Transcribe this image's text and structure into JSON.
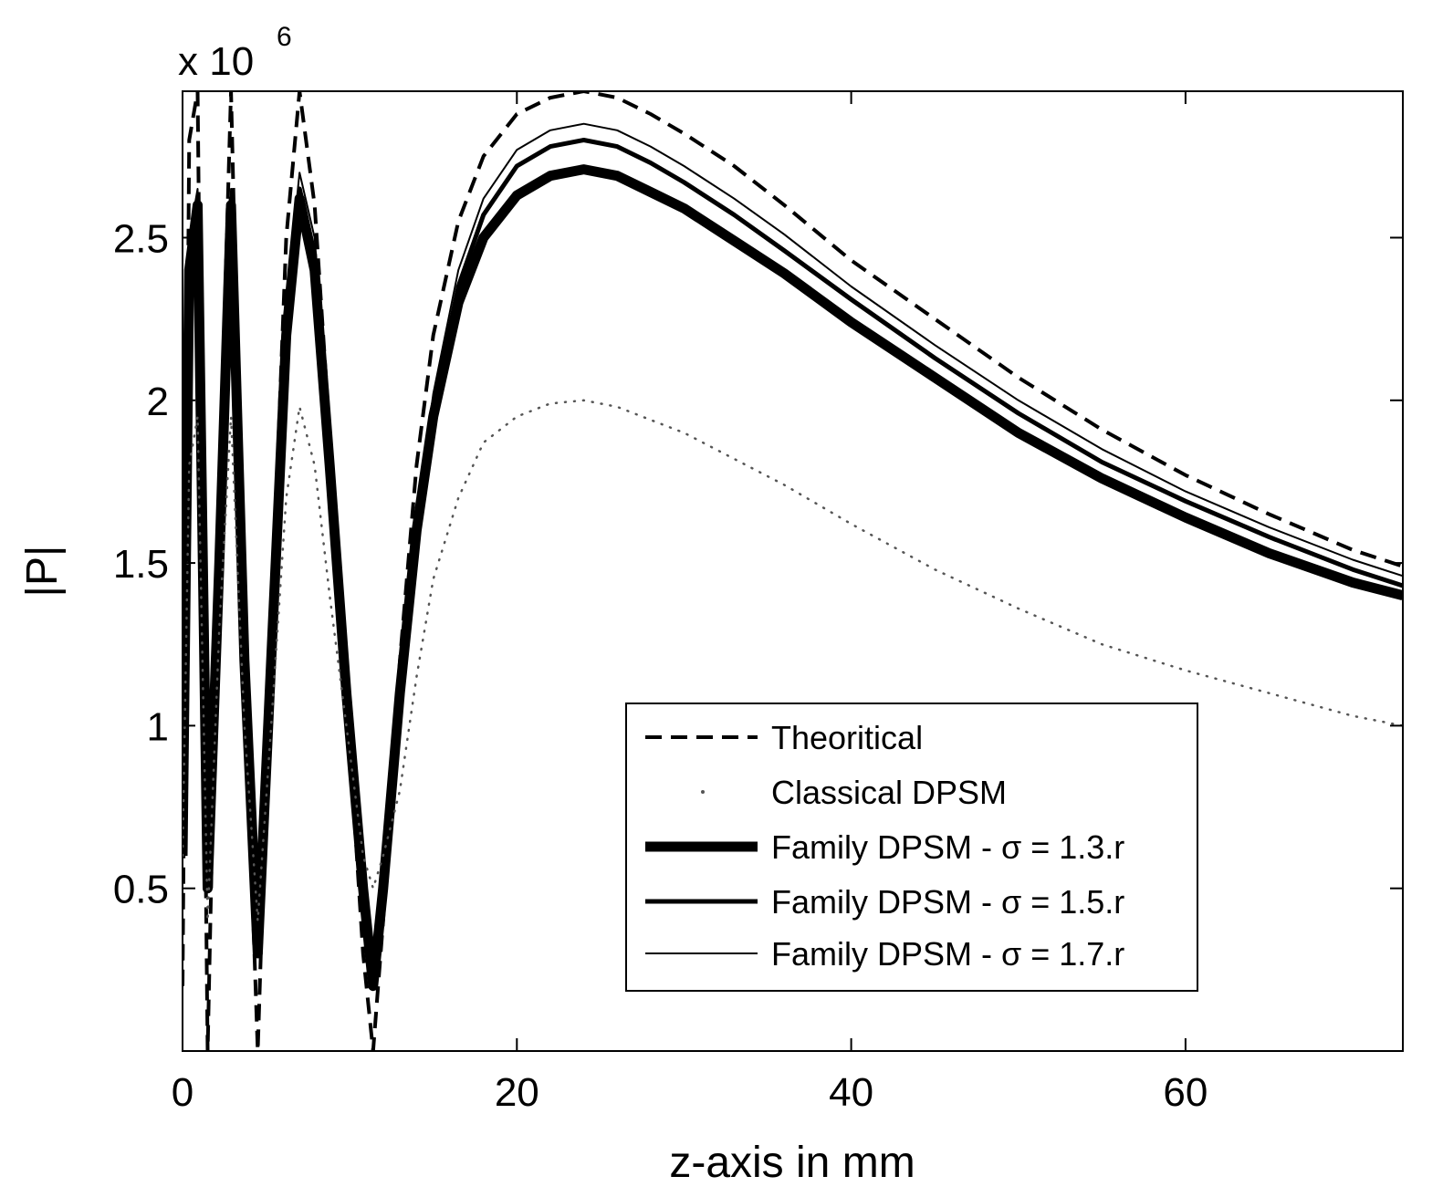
{
  "chart_data": {
    "type": "line",
    "title": "",
    "xlabel": "z-axis in mm",
    "ylabel": "|P|",
    "y_multiplier_label": {
      "base": "x 10",
      "exponent": "6"
    },
    "xlim": [
      0,
      73
    ],
    "ylim": [
      0,
      2.95
    ],
    "xticks": [
      0,
      20,
      40,
      60
    ],
    "xtick_labels": [
      "0",
      "20",
      "40",
      "60"
    ],
    "yticks": [
      0.5,
      1,
      1.5,
      2,
      2.5
    ],
    "ytick_labels": [
      "0.5",
      "1",
      "1.5",
      "2",
      "2.5"
    ],
    "grid": false,
    "legend_position": "lower-right",
    "series": [
      {
        "name": "Theoritical",
        "style": "dashed",
        "color": "#000000",
        "x": [
          0,
          0.4,
          0.9,
          1.5,
          2.2,
          2.9,
          3.7,
          4.5,
          5.3,
          6.2,
          7.0,
          7.9,
          8.8,
          9.8,
          10.8,
          11.4,
          12.0,
          13.0,
          14.0,
          15.0,
          16.5,
          18.0,
          20.0,
          22.0,
          24.0,
          26.0,
          28.0,
          30.0,
          33.0,
          36.0,
          40.0,
          45.0,
          50.0,
          55.0,
          60.0,
          65.0,
          70.0,
          73.0
        ],
        "y": [
          0.2,
          2.8,
          2.95,
          0.0,
          1.7,
          2.95,
          1.2,
          0.0,
          1.3,
          2.5,
          2.95,
          2.6,
          1.9,
          1.1,
          0.3,
          0.0,
          0.4,
          1.2,
          1.8,
          2.2,
          2.55,
          2.75,
          2.88,
          2.93,
          2.95,
          2.93,
          2.88,
          2.82,
          2.72,
          2.6,
          2.43,
          2.25,
          2.07,
          1.91,
          1.77,
          1.65,
          1.54,
          1.49
        ]
      },
      {
        "name": "Classical DPSM",
        "style": "dotted",
        "color": "#555555",
        "x": [
          0,
          0.4,
          0.9,
          1.5,
          2.2,
          2.9,
          3.7,
          4.5,
          5.3,
          6.2,
          7.0,
          7.9,
          8.8,
          9.8,
          10.8,
          11.4,
          12.0,
          13.0,
          14.0,
          15.0,
          16.5,
          18.0,
          20.0,
          22.0,
          24.0,
          26.0,
          28.0,
          30.0,
          33.0,
          36.0,
          40.0,
          45.0,
          50.0,
          55.0,
          60.0,
          65.0,
          70.0,
          73.0
        ],
        "y": [
          0.6,
          1.8,
          1.95,
          0.4,
          1.3,
          1.95,
          1.0,
          0.4,
          1.0,
          1.7,
          1.98,
          1.8,
          1.4,
          1.0,
          0.6,
          0.5,
          0.6,
          0.8,
          1.15,
          1.45,
          1.7,
          1.87,
          1.95,
          1.99,
          2.0,
          1.98,
          1.94,
          1.9,
          1.82,
          1.74,
          1.62,
          1.48,
          1.36,
          1.25,
          1.17,
          1.1,
          1.03,
          1.0
        ]
      },
      {
        "name": "Family DPSM - σ = 1.3.r",
        "style": "solid-thick",
        "color": "#000000",
        "x": [
          0,
          0.4,
          0.9,
          1.5,
          2.2,
          2.9,
          3.7,
          4.5,
          5.3,
          6.2,
          7.0,
          7.9,
          8.8,
          9.8,
          10.8,
          11.4,
          12.0,
          13.0,
          14.0,
          15.0,
          16.5,
          18.0,
          20.0,
          22.0,
          24.0,
          26.0,
          28.0,
          30.0,
          33.0,
          36.0,
          40.0,
          45.0,
          50.0,
          55.0,
          60.0,
          65.0,
          70.0,
          73.0
        ],
        "y": [
          0.6,
          2.4,
          2.6,
          0.5,
          1.5,
          2.6,
          1.2,
          0.3,
          1.2,
          2.2,
          2.62,
          2.4,
          1.8,
          1.1,
          0.5,
          0.2,
          0.5,
          1.1,
          1.6,
          1.95,
          2.3,
          2.5,
          2.63,
          2.69,
          2.71,
          2.69,
          2.64,
          2.59,
          2.49,
          2.39,
          2.24,
          2.07,
          1.9,
          1.76,
          1.64,
          1.53,
          1.44,
          1.4
        ]
      },
      {
        "name": "Family DPSM - σ = 1.5.r",
        "style": "solid-medium",
        "color": "#000000",
        "x": [
          0,
          0.4,
          0.9,
          1.5,
          2.2,
          2.9,
          3.7,
          4.5,
          5.3,
          6.2,
          7.0,
          7.9,
          8.8,
          9.8,
          10.8,
          11.4,
          12.0,
          13.0,
          14.0,
          15.0,
          16.5,
          18.0,
          20.0,
          22.0,
          24.0,
          26.0,
          28.0,
          30.0,
          33.0,
          36.0,
          40.0,
          45.0,
          50.0,
          55.0,
          60.0,
          65.0,
          70.0,
          73.0
        ],
        "y": [
          0.6,
          2.45,
          2.62,
          0.5,
          1.55,
          2.62,
          1.2,
          0.3,
          1.2,
          2.25,
          2.65,
          2.45,
          1.85,
          1.12,
          0.5,
          0.2,
          0.5,
          1.12,
          1.62,
          1.98,
          2.35,
          2.57,
          2.72,
          2.78,
          2.8,
          2.78,
          2.73,
          2.67,
          2.57,
          2.46,
          2.31,
          2.13,
          1.96,
          1.81,
          1.69,
          1.58,
          1.48,
          1.43
        ]
      },
      {
        "name": "Family DPSM - σ = 1.7.r",
        "style": "solid-thin",
        "color": "#000000",
        "x": [
          0,
          0.4,
          0.9,
          1.5,
          2.2,
          2.9,
          3.7,
          4.5,
          5.3,
          6.2,
          7.0,
          7.9,
          8.8,
          9.8,
          10.8,
          11.4,
          12.0,
          13.0,
          14.0,
          15.0,
          16.5,
          18.0,
          20.0,
          22.0,
          24.0,
          26.0,
          28.0,
          30.0,
          33.0,
          36.0,
          40.0,
          45.0,
          50.0,
          55.0,
          60.0,
          65.0,
          70.0,
          73.0
        ],
        "y": [
          0.6,
          2.5,
          2.65,
          0.5,
          1.6,
          2.65,
          1.2,
          0.3,
          1.2,
          2.3,
          2.7,
          2.5,
          1.9,
          1.15,
          0.5,
          0.2,
          0.5,
          1.15,
          1.65,
          2.02,
          2.4,
          2.62,
          2.77,
          2.83,
          2.85,
          2.83,
          2.78,
          2.72,
          2.62,
          2.51,
          2.35,
          2.17,
          2.0,
          1.85,
          1.72,
          1.61,
          1.51,
          1.46
        ]
      }
    ]
  }
}
